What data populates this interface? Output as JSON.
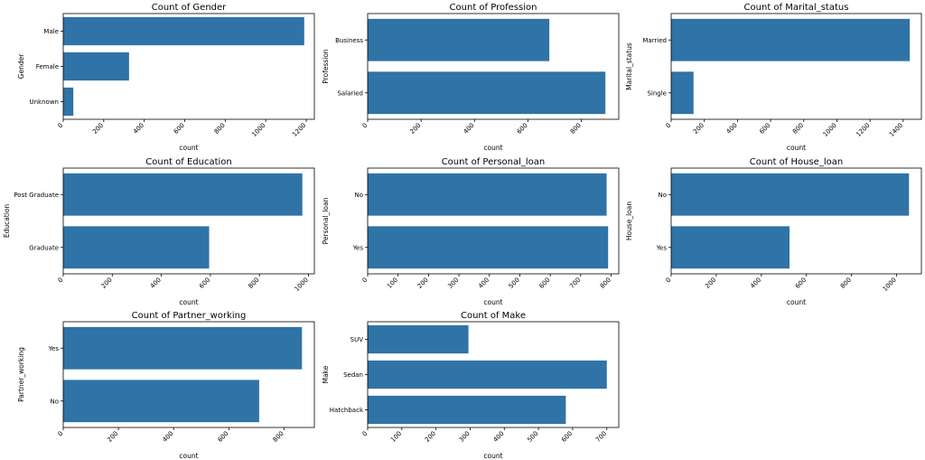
{
  "chart_data": [
    {
      "type": "bar",
      "orientation": "horizontal",
      "title": "Count of Gender",
      "xlabel": "count",
      "ylabel": "Gender",
      "categories": [
        "Male",
        "Female",
        "Unknown"
      ],
      "values": [
        1190,
        325,
        50
      ],
      "xlim": [
        0,
        1240
      ],
      "xticks": [
        0,
        200,
        400,
        600,
        800,
        1000,
        1200
      ]
    },
    {
      "type": "bar",
      "orientation": "horizontal",
      "title": "Count of Profession",
      "xlabel": "count",
      "ylabel": "Profession",
      "categories": [
        "Business",
        "Salaried"
      ],
      "values": [
        680,
        890
      ],
      "xlim": [
        0,
        940
      ],
      "xticks": [
        0,
        200,
        400,
        600,
        800
      ]
    },
    {
      "type": "bar",
      "orientation": "horizontal",
      "title": "Count of Marital_status",
      "xlabel": "count",
      "ylabel": "Marital_status",
      "categories": [
        "Married",
        "Single"
      ],
      "values": [
        1440,
        135
      ],
      "xlim": [
        0,
        1510
      ],
      "xticks": [
        0,
        200,
        400,
        600,
        800,
        1000,
        1200,
        1400
      ]
    },
    {
      "type": "bar",
      "orientation": "horizontal",
      "title": "Count of Education",
      "xlabel": "count",
      "ylabel": "Education",
      "categories": [
        "Post Graduate",
        "Graduate"
      ],
      "values": [
        975,
        595
      ],
      "xlim": [
        0,
        1024
      ],
      "xticks": [
        0,
        200,
        400,
        600,
        800,
        1000
      ]
    },
    {
      "type": "bar",
      "orientation": "horizontal",
      "title": "Count of Personal_loan",
      "xlabel": "count",
      "ylabel": "Personal_loan",
      "categories": [
        "No",
        "Yes"
      ],
      "values": [
        785,
        790
      ],
      "xlim": [
        0,
        825
      ],
      "xticks": [
        0,
        100,
        200,
        300,
        400,
        500,
        600,
        700,
        800
      ]
    },
    {
      "type": "bar",
      "orientation": "horizontal",
      "title": "Count of House_loan",
      "xlabel": "count",
      "ylabel": "House_loan",
      "categories": [
        "No",
        "Yes"
      ],
      "values": [
        1055,
        525
      ],
      "xlim": [
        0,
        1110
      ],
      "xticks": [
        0,
        200,
        400,
        600,
        800,
        1000
      ]
    },
    {
      "type": "bar",
      "orientation": "horizontal",
      "title": "Count of Partner_working",
      "xlabel": "count",
      "ylabel": "Partner_working",
      "categories": [
        "Yes",
        "No"
      ],
      "values": [
        865,
        710
      ],
      "xlim": [
        0,
        910
      ],
      "xticks": [
        0,
        200,
        400,
        600,
        800
      ]
    },
    {
      "type": "bar",
      "orientation": "horizontal",
      "title": "Count of Make",
      "xlabel": "count",
      "ylabel": "Make",
      "categories": [
        "SUV",
        "Sedan",
        "Hatchback"
      ],
      "values": [
        295,
        700,
        580
      ],
      "xlim": [
        0,
        735
      ],
      "xticks": [
        0,
        100,
        200,
        300,
        400,
        500,
        600,
        700
      ]
    }
  ],
  "colors": {
    "bar": "#2f73a7",
    "axis": "#000000",
    "background": "#ffffff"
  }
}
